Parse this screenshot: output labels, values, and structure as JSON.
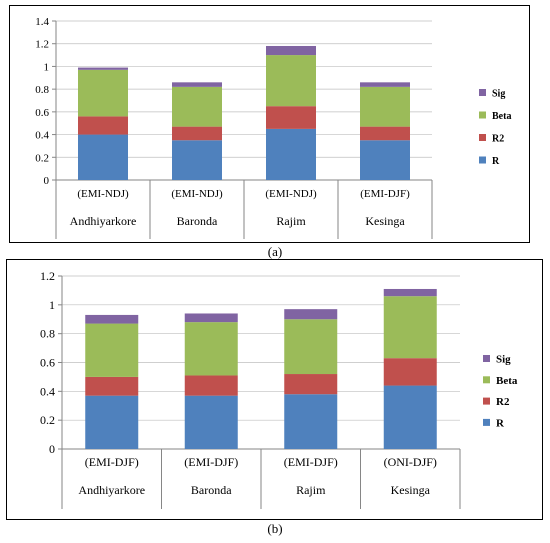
{
  "panels": {
    "a_caption": "(a)",
    "b_caption": "(b)"
  },
  "colors": {
    "R": "#4f81bd",
    "R2": "#c0504d",
    "Beta": "#9bbb59",
    "Sig": "#8064a2",
    "grid_line": "#bfbfbf",
    "axis": "#868686"
  },
  "chart_data": [
    {
      "type": "bar",
      "stacked": true,
      "title": "",
      "xlabel": "",
      "ylabel": "",
      "ylim": [
        0,
        1.4
      ],
      "yticks": [
        "0",
        "0.2",
        "0.4",
        "0.6",
        "0.8",
        "1",
        "1.2",
        "1.4"
      ],
      "categories": [
        "(EMI-NDJ)",
        "(EMI-NDJ)",
        "(EMI-NDJ)",
        "(EMI-DJF)"
      ],
      "group_labels": [
        "Andhiyarkore",
        "Baronda",
        "Rajim",
        "Kesinga"
      ],
      "series": [
        {
          "name": "R",
          "values": [
            0.4,
            0.35,
            0.45,
            0.35
          ]
        },
        {
          "name": "R2",
          "values": [
            0.16,
            0.12,
            0.2,
            0.12
          ]
        },
        {
          "name": "Beta",
          "values": [
            0.41,
            0.35,
            0.45,
            0.35
          ]
        },
        {
          "name": "Sig",
          "values": [
            0.02,
            0.04,
            0.08,
            0.04
          ]
        }
      ],
      "legend_position": "right",
      "legend_order": [
        "Sig",
        "Beta",
        "R2",
        "R"
      ]
    },
    {
      "type": "bar",
      "stacked": true,
      "title": "",
      "xlabel": "",
      "ylabel": "",
      "ylim": [
        0,
        1.2
      ],
      "yticks": [
        "0",
        "0.2",
        "0.4",
        "0.6",
        "0.8",
        "1",
        "1.2"
      ],
      "categories": [
        "(EMI-DJF)",
        "(EMI-DJF)",
        "(EMI-DJF)",
        "(ONI-DJF)"
      ],
      "group_labels": [
        "Andhiyarkore",
        "Baronda",
        "Rajim",
        "Kesinga"
      ],
      "series": [
        {
          "name": "R",
          "values": [
            0.37,
            0.37,
            0.38,
            0.44
          ]
        },
        {
          "name": "R2",
          "values": [
            0.13,
            0.14,
            0.14,
            0.19
          ]
        },
        {
          "name": "Beta",
          "values": [
            0.37,
            0.37,
            0.38,
            0.43
          ]
        },
        {
          "name": "Sig",
          "values": [
            0.06,
            0.06,
            0.07,
            0.05
          ]
        }
      ],
      "legend_position": "right",
      "legend_order": [
        "Sig",
        "Beta",
        "R2",
        "R"
      ]
    }
  ]
}
